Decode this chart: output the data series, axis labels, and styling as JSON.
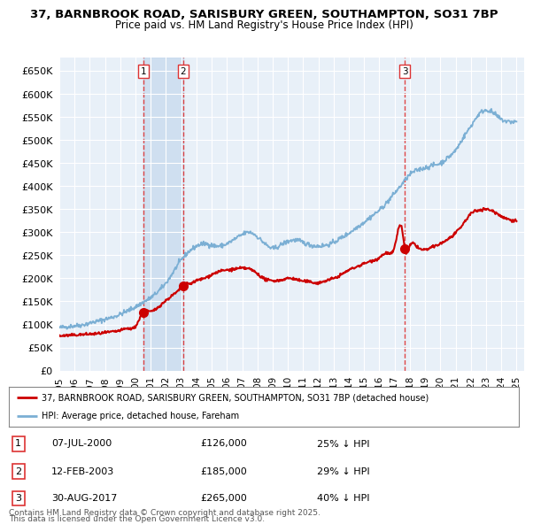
{
  "title_line1": "37, BARNBROOK ROAD, SARISBURY GREEN, SOUTHAMPTON, SO31 7BP",
  "title_line2": "Price paid vs. HM Land Registry's House Price Index (HPI)",
  "bg_color": "#ffffff",
  "plot_bg_color": "#e8f0f8",
  "grid_color": "#ffffff",
  "hpi_color": "#7bafd4",
  "price_color": "#cc0000",
  "marker_color": "#cc0000",
  "vline_color": "#dd3333",
  "shade_color": "#c5d8ee",
  "ylim": [
    0,
    680000
  ],
  "yticks": [
    0,
    50000,
    100000,
    150000,
    200000,
    250000,
    300000,
    350000,
    400000,
    450000,
    500000,
    550000,
    600000,
    650000
  ],
  "xlim_start": 1995.0,
  "xlim_end": 2025.5,
  "purchases": [
    {
      "label": "1",
      "date_num": 2000.52,
      "price": 126000
    },
    {
      "label": "2",
      "date_num": 2003.12,
      "price": 185000
    },
    {
      "label": "3",
      "date_num": 2017.66,
      "price": 265000
    }
  ],
  "legend_label_price": "37, BARNBROOK ROAD, SARISBURY GREEN, SOUTHAMPTON, SO31 7BP (detached house)",
  "legend_label_hpi": "HPI: Average price, detached house, Fareham",
  "footer_line1": "Contains HM Land Registry data © Crown copyright and database right 2025.",
  "footer_line2": "This data is licensed under the Open Government Licence v3.0.",
  "table_entries": [
    {
      "num": "1",
      "date": "07-JUL-2000",
      "price": "£126,000",
      "pct": "25% ↓ HPI"
    },
    {
      "num": "2",
      "date": "12-FEB-2003",
      "price": "£185,000",
      "pct": "29% ↓ HPI"
    },
    {
      "num": "3",
      "date": "30-AUG-2017",
      "price": "£265,000",
      "pct": "40% ↓ HPI"
    }
  ],
  "hpi_data": [
    [
      1995.0,
      93000
    ],
    [
      1995.5,
      95000
    ],
    [
      1996.0,
      97000
    ],
    [
      1996.5,
      99000
    ],
    [
      1997.0,
      103000
    ],
    [
      1997.5,
      107000
    ],
    [
      1998.0,
      111000
    ],
    [
      1998.5,
      116000
    ],
    [
      1999.0,
      122000
    ],
    [
      1999.5,
      130000
    ],
    [
      2000.0,
      138000
    ],
    [
      2000.5,
      148000
    ],
    [
      2001.0,
      158000
    ],
    [
      2001.5,
      172000
    ],
    [
      2002.0,
      190000
    ],
    [
      2002.5,
      215000
    ],
    [
      2003.0,
      240000
    ],
    [
      2003.5,
      258000
    ],
    [
      2004.0,
      270000
    ],
    [
      2004.5,
      275000
    ],
    [
      2005.0,
      272000
    ],
    [
      2005.5,
      270000
    ],
    [
      2006.0,
      275000
    ],
    [
      2006.5,
      285000
    ],
    [
      2007.0,
      295000
    ],
    [
      2007.5,
      300000
    ],
    [
      2008.0,
      290000
    ],
    [
      2008.5,
      275000
    ],
    [
      2009.0,
      265000
    ],
    [
      2009.5,
      272000
    ],
    [
      2010.0,
      280000
    ],
    [
      2010.5,
      283000
    ],
    [
      2011.0,
      278000
    ],
    [
      2011.5,
      272000
    ],
    [
      2012.0,
      270000
    ],
    [
      2012.5,
      272000
    ],
    [
      2013.0,
      278000
    ],
    [
      2013.5,
      288000
    ],
    [
      2014.0,
      298000
    ],
    [
      2014.5,
      310000
    ],
    [
      2015.0,
      322000
    ],
    [
      2015.5,
      335000
    ],
    [
      2016.0,
      348000
    ],
    [
      2016.5,
      365000
    ],
    [
      2017.0,
      385000
    ],
    [
      2017.5,
      405000
    ],
    [
      2018.0,
      425000
    ],
    [
      2018.5,
      435000
    ],
    [
      2019.0,
      440000
    ],
    [
      2019.5,
      445000
    ],
    [
      2020.0,
      450000
    ],
    [
      2020.5,
      462000
    ],
    [
      2021.0,
      478000
    ],
    [
      2021.5,
      505000
    ],
    [
      2022.0,
      530000
    ],
    [
      2022.5,
      555000
    ],
    [
      2023.0,
      565000
    ],
    [
      2023.5,
      558000
    ],
    [
      2024.0,
      545000
    ],
    [
      2024.5,
      540000
    ],
    [
      2025.0,
      540000
    ]
  ],
  "price_data": [
    [
      1995.0,
      75000
    ],
    [
      1995.5,
      76000
    ],
    [
      1996.0,
      77000
    ],
    [
      1996.5,
      78000
    ],
    [
      1997.0,
      79000
    ],
    [
      1997.5,
      80000
    ],
    [
      1998.0,
      82000
    ],
    [
      1998.5,
      84000
    ],
    [
      1999.0,
      87000
    ],
    [
      1999.5,
      91000
    ],
    [
      2000.0,
      96000
    ],
    [
      2000.5,
      126000
    ],
    [
      2001.0,
      128000
    ],
    [
      2001.5,
      138000
    ],
    [
      2002.0,
      152000
    ],
    [
      2002.5,
      165000
    ],
    [
      2003.0,
      180000
    ],
    [
      2003.12,
      185000
    ],
    [
      2003.5,
      188000
    ],
    [
      2004.0,
      195000
    ],
    [
      2004.5,
      200000
    ],
    [
      2005.0,
      208000
    ],
    [
      2005.5,
      215000
    ],
    [
      2006.0,
      218000
    ],
    [
      2006.5,
      220000
    ],
    [
      2007.0,
      222000
    ],
    [
      2007.5,
      220000
    ],
    [
      2008.0,
      210000
    ],
    [
      2008.5,
      198000
    ],
    [
      2009.0,
      195000
    ],
    [
      2009.5,
      196000
    ],
    [
      2010.0,
      200000
    ],
    [
      2010.5,
      198000
    ],
    [
      2011.0,
      194000
    ],
    [
      2011.5,
      192000
    ],
    [
      2012.0,
      190000
    ],
    [
      2012.5,
      195000
    ],
    [
      2013.0,
      200000
    ],
    [
      2013.5,
      208000
    ],
    [
      2014.0,
      218000
    ],
    [
      2014.5,
      225000
    ],
    [
      2015.0,
      232000
    ],
    [
      2015.5,
      238000
    ],
    [
      2016.0,
      245000
    ],
    [
      2016.5,
      255000
    ],
    [
      2017.0,
      268000
    ],
    [
      2017.5,
      305000
    ],
    [
      2017.66,
      265000
    ],
    [
      2018.0,
      270000
    ],
    [
      2018.5,
      268000
    ],
    [
      2019.0,
      262000
    ],
    [
      2019.5,
      268000
    ],
    [
      2020.0,
      275000
    ],
    [
      2020.5,
      285000
    ],
    [
      2021.0,
      298000
    ],
    [
      2021.5,
      318000
    ],
    [
      2022.0,
      340000
    ],
    [
      2022.5,
      348000
    ],
    [
      2023.0,
      350000
    ],
    [
      2023.5,
      345000
    ],
    [
      2024.0,
      335000
    ],
    [
      2024.5,
      328000
    ],
    [
      2025.0,
      325000
    ]
  ]
}
